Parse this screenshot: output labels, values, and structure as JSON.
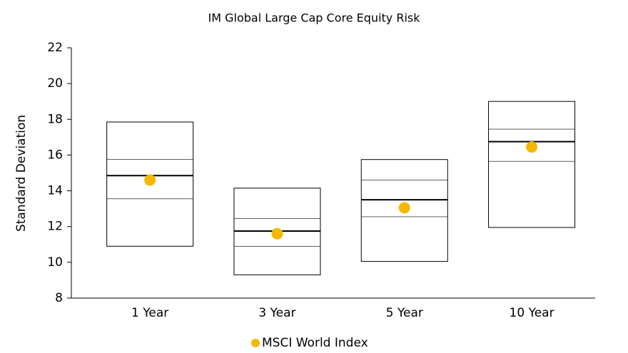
{
  "chart_data": {
    "type": "box",
    "title": "IM Global Large Cap Core Equity Risk",
    "y_label": "Standard Deviation",
    "categories": [
      "1 Year",
      "3 Year",
      "5 Year",
      "10 Year"
    ],
    "percentiles": {
      "high": [
        17.85,
        14.15,
        15.75,
        19.0
      ],
      "p75": [
        15.75,
        12.45,
        14.6,
        17.45
      ],
      "median": [
        14.85,
        11.75,
        13.5,
        16.75
      ],
      "p25": [
        13.55,
        10.9,
        12.55,
        15.65
      ],
      "low": [
        10.9,
        9.3,
        10.05,
        11.95
      ]
    },
    "series": [
      {
        "name": "MSCI World Index",
        "color": "#f5b800",
        "values": [
          14.6,
          11.6,
          13.05,
          16.45
        ]
      }
    ],
    "ylim": [
      8,
      22
    ],
    "yticks": [
      8,
      10,
      12,
      14,
      16,
      18,
      20,
      22
    ],
    "grid": false,
    "legend": "bottom"
  }
}
